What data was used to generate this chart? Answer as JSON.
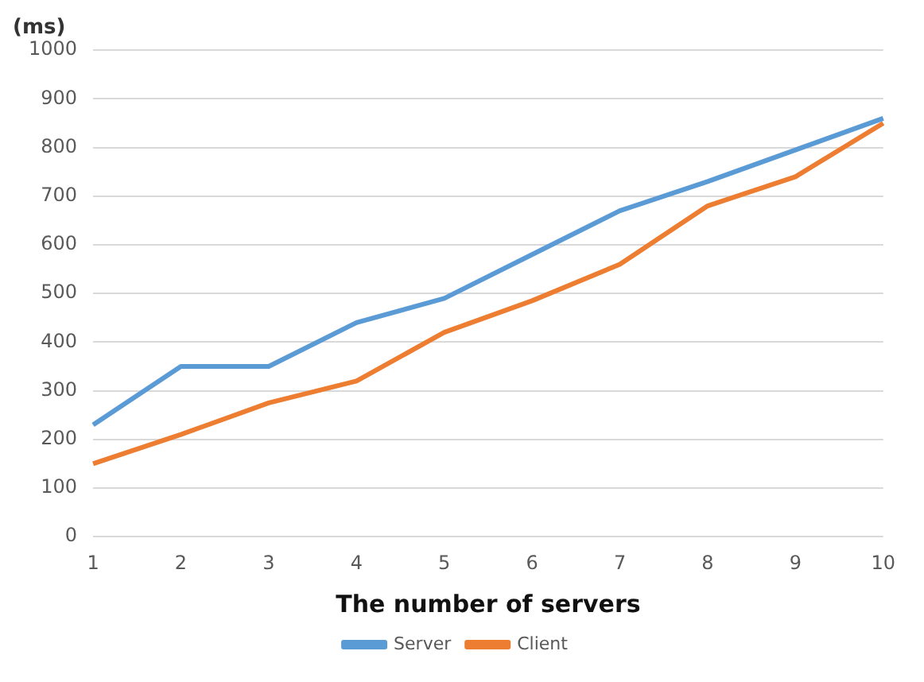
{
  "chart_data": {
    "type": "line",
    "ylabel": "(ms)",
    "xlabel": "The number of servers",
    "categories": [
      "1",
      "2",
      "3",
      "4",
      "5",
      "6",
      "7",
      "8",
      "9",
      "10"
    ],
    "series": [
      {
        "name": "Server",
        "color": "#5b9bd5",
        "values": [
          230,
          350,
          350,
          440,
          490,
          580,
          670,
          730,
          795,
          860
        ]
      },
      {
        "name": "Client",
        "color": "#ed7d31",
        "values": [
          150,
          210,
          275,
          320,
          420,
          485,
          560,
          680,
          740,
          850
        ]
      }
    ],
    "ylim": [
      0,
      1000
    ],
    "yticks": [
      0,
      100,
      200,
      300,
      400,
      500,
      600,
      700,
      800,
      900,
      1000
    ],
    "grid": "y",
    "legend": "bottom",
    "marker": "none",
    "line_style": "solid"
  }
}
